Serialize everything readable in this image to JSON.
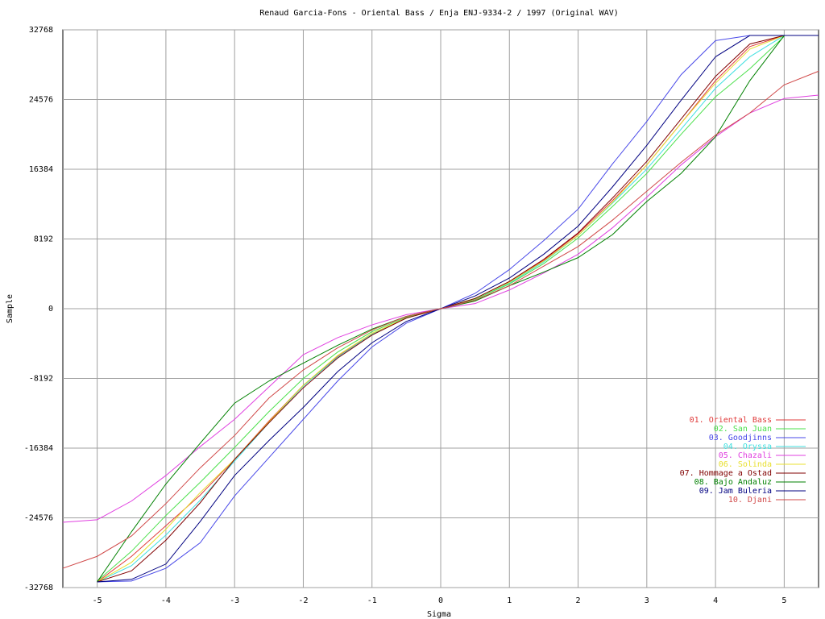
{
  "chart_data": {
    "type": "line",
    "title": "Renaud Garcia-Fons - Oriental Bass / Enja ENJ-9334-2 / 1997 (Original WAV)",
    "x_label": "Sigma",
    "y_label": "Sample",
    "x": [
      -5.5,
      -5,
      -4.5,
      -4,
      -3.5,
      -3,
      -2.5,
      -2,
      -1.5,
      -1,
      -0.5,
      0,
      0.5,
      1,
      1.5,
      2,
      2.5,
      3,
      3.5,
      4,
      4.5,
      5,
      5.5
    ],
    "xlim": [
      -5.5,
      5.5
    ],
    "ylim": [
      -32768,
      32768
    ],
    "xticks": [
      -5,
      -4,
      -3,
      -2,
      -1,
      0,
      1,
      2,
      3,
      4,
      5
    ],
    "yticks": [
      -32768,
      -24576,
      -16384,
      -8192,
      0,
      8192,
      16384,
      24576,
      32768
    ],
    "grid": true,
    "legend": "bottom-right",
    "series": [
      {
        "name": "01. Oriental Bass",
        "color": "#e03c3c",
        "values": [
          null,
          -32100,
          -29100,
          -25500,
          -21900,
          -17700,
          -13200,
          -9000,
          -5600,
          -3000,
          -1100,
          0,
          1200,
          3100,
          5700,
          8800,
          12700,
          16900,
          21800,
          26800,
          30800,
          32100,
          32100
        ]
      },
      {
        "name": "02. San Juan",
        "color": "#4ce04c",
        "values": [
          null,
          -32000,
          -28500,
          -24300,
          -20400,
          -16300,
          -12100,
          -8200,
          -5100,
          -2700,
          -1000,
          0,
          1100,
          2900,
          5300,
          8300,
          12000,
          15900,
          20500,
          24900,
          28200,
          32000,
          null
        ]
      },
      {
        "name": "03. Goodjinns",
        "color": "#4848e8",
        "values": [
          null,
          -32100,
          -32000,
          -30500,
          -27500,
          -22000,
          -17500,
          -13000,
          -8500,
          -4500,
          -1700,
          0,
          1800,
          4600,
          8000,
          11700,
          17000,
          22000,
          27500,
          31500,
          32100,
          32100,
          32100
        ]
      },
      {
        "name": "04. Oryssa",
        "color": "#40e0e0",
        "values": [
          null,
          -32100,
          -30200,
          -26600,
          -22500,
          -17900,
          -13400,
          -9100,
          -5700,
          -3000,
          -1100,
          0,
          1200,
          3000,
          5500,
          8600,
          12400,
          16400,
          21100,
          25900,
          29600,
          32100,
          null
        ]
      },
      {
        "name": "05. Chazali",
        "color": "#e040e0",
        "values": [
          -25100,
          -24800,
          -22600,
          -19600,
          -16200,
          -13000,
          -9200,
          -5400,
          -3400,
          -1900,
          -700,
          0,
          600,
          2200,
          4200,
          6400,
          9500,
          13100,
          16900,
          20200,
          23000,
          24700,
          25100
        ]
      },
      {
        "name": "06. Solinda",
        "color": "#e8e030",
        "values": [
          null,
          -32100,
          -29800,
          -25900,
          -21600,
          -17700,
          -13300,
          -9000,
          -5500,
          -2900,
          -1100,
          0,
          1200,
          3100,
          5600,
          8600,
          12500,
          16900,
          21800,
          26500,
          30500,
          32100,
          null
        ]
      },
      {
        "name": "07. Hommage a Ostad",
        "color": "#800000",
        "values": [
          null,
          -32100,
          -30800,
          -27200,
          -22800,
          -17700,
          -13400,
          -9300,
          -5800,
          -3100,
          -1100,
          0,
          1200,
          3200,
          5800,
          8900,
          13000,
          17300,
          22300,
          27300,
          31100,
          32100,
          32100
        ]
      },
      {
        "name": "08. Bajo Andaluz",
        "color": "#008000",
        "values": [
          null,
          -32100,
          -26200,
          -20600,
          -15800,
          -11100,
          -8500,
          -6400,
          -4300,
          -2400,
          -900,
          0,
          900,
          2700,
          4300,
          6000,
          8700,
          12600,
          15900,
          20200,
          26800,
          32100,
          null
        ]
      },
      {
        "name": "09. Jam Buleria",
        "color": "#000080",
        "values": [
          null,
          -32100,
          -31800,
          -30000,
          -25000,
          -19600,
          -15500,
          -11600,
          -7400,
          -4000,
          -1500,
          0,
          1500,
          3600,
          6400,
          9700,
          14300,
          19200,
          24500,
          29600,
          32100,
          32100,
          32100
        ]
      },
      {
        "name": "10. Djani",
        "color": "#d04848",
        "values": [
          -30500,
          -29100,
          -26700,
          -22900,
          -18700,
          -14900,
          -10500,
          -7200,
          -4600,
          -2500,
          -900,
          0,
          1000,
          2700,
          5000,
          7300,
          10400,
          13800,
          17200,
          20400,
          23000,
          26300,
          27900
        ]
      }
    ]
  }
}
